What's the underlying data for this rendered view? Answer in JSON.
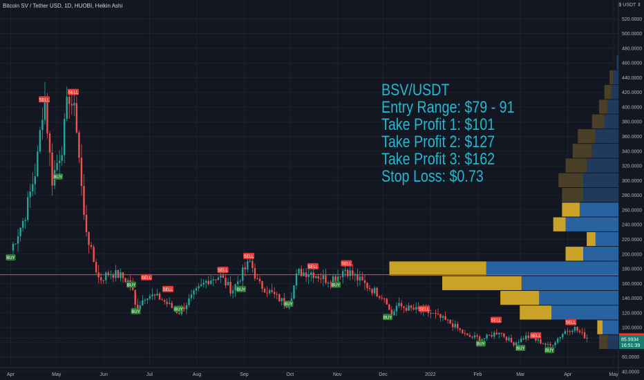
{
  "header": {
    "title": "Bitcoin SV / Tether USD, 1D, HUOBI, Heikin Ashi"
  },
  "price_axis": {
    "unit": "$ USDT ⇕"
  },
  "overlay": {
    "lines": [
      "BSV/USDT",
      "Entry Range: $79 - 91",
      "Take Profit 1: $101",
      "Take Profit 2: $127",
      "Take Profit 3: $162",
      "Stop Loss: $0.73"
    ]
  },
  "colors": {
    "background": "#131722",
    "grid": "#1e222d",
    "up": "#26a69a",
    "down": "#ef5350",
    "text_overlay": "#22b8cf",
    "horizontal_line": "#f23645",
    "profile_up": "#2962a0",
    "profile_down": "#c9a227",
    "buy": "#2e7d32",
    "sell": "#e53935"
  },
  "price_badges": {
    "current": "86.6424",
    "last": "85.9934",
    "countdown": "16:51:39"
  },
  "chart_data": {
    "type": "candlestick",
    "title": "Bitcoin SV / Tether USD, 1D, HUOBI, Heikin Ashi",
    "ylim": [
      40,
      540
    ],
    "y_ticks": [
      "40.0000",
      "60.0000",
      "80.0000",
      "100.0000",
      "120.0000",
      "140.0000",
      "160.0000",
      "180.0000",
      "200.0000",
      "220.0000",
      "240.0000",
      "260.0000",
      "280.0000",
      "300.0000",
      "320.0000",
      "340.0000",
      "360.0000",
      "380.0000",
      "400.0000",
      "420.0000",
      "440.0000",
      "460.0000",
      "480.0000",
      "500.0000",
      "520.0000"
    ],
    "x_ticks": [
      "Apr",
      "May",
      "Jun",
      "Jul",
      "Aug",
      "Sep",
      "Oct",
      "Nov",
      "Dec",
      "2022",
      "Feb",
      "Mar",
      "Apr",
      "May"
    ],
    "close_series": [
      {
        "x": "2021-04-01",
        "y": 205
      },
      {
        "x": "2021-04-10",
        "y": 250
      },
      {
        "x": "2021-04-18",
        "y": 320
      },
      {
        "x": "2021-04-23",
        "y": 420
      },
      {
        "x": "2021-04-28",
        "y": 300
      },
      {
        "x": "2021-05-05",
        "y": 350
      },
      {
        "x": "2021-05-09",
        "y": 420
      },
      {
        "x": "2021-05-14",
        "y": 380
      },
      {
        "x": "2021-05-19",
        "y": 250
      },
      {
        "x": "2021-05-24",
        "y": 200
      },
      {
        "x": "2021-05-29",
        "y": 165
      },
      {
        "x": "2021-06-05",
        "y": 175
      },
      {
        "x": "2021-06-12",
        "y": 170
      },
      {
        "x": "2021-06-19",
        "y": 160
      },
      {
        "x": "2021-06-22",
        "y": 125
      },
      {
        "x": "2021-06-29",
        "y": 145
      },
      {
        "x": "2021-07-08",
        "y": 140
      },
      {
        "x": "2021-07-20",
        "y": 120
      },
      {
        "x": "2021-07-30",
        "y": 145
      },
      {
        "x": "2021-08-08",
        "y": 165
      },
      {
        "x": "2021-08-16",
        "y": 170
      },
      {
        "x": "2021-08-24",
        "y": 150
      },
      {
        "x": "2021-08-31",
        "y": 175
      },
      {
        "x": "2021-09-05",
        "y": 190
      },
      {
        "x": "2021-09-10",
        "y": 160
      },
      {
        "x": "2021-09-20",
        "y": 145
      },
      {
        "x": "2021-09-30",
        "y": 130
      },
      {
        "x": "2021-10-06",
        "y": 175
      },
      {
        "x": "2021-10-15",
        "y": 175
      },
      {
        "x": "2021-10-25",
        "y": 165
      },
      {
        "x": "2021-11-01",
        "y": 170
      },
      {
        "x": "2021-11-06",
        "y": 180
      },
      {
        "x": "2021-11-15",
        "y": 165
      },
      {
        "x": "2021-11-25",
        "y": 150
      },
      {
        "x": "2021-12-03",
        "y": 140
      },
      {
        "x": "2021-12-06",
        "y": 115
      },
      {
        "x": "2021-12-10",
        "y": 130
      },
      {
        "x": "2021-12-20",
        "y": 125
      },
      {
        "x": "2022-01-01",
        "y": 120
      },
      {
        "x": "2022-01-15",
        "y": 105
      },
      {
        "x": "2022-01-25",
        "y": 88
      },
      {
        "x": "2022-02-05",
        "y": 85
      },
      {
        "x": "2022-02-15",
        "y": 95
      },
      {
        "x": "2022-02-24",
        "y": 78
      },
      {
        "x": "2022-03-05",
        "y": 88
      },
      {
        "x": "2022-03-15",
        "y": 80
      },
      {
        "x": "2022-03-20",
        "y": 74
      },
      {
        "x": "2022-03-30",
        "y": 95
      },
      {
        "x": "2022-04-05",
        "y": 100
      },
      {
        "x": "2022-04-12",
        "y": 88
      },
      {
        "x": "2022-04-15",
        "y": 86
      }
    ],
    "horizontal_line": 172,
    "signals": [
      {
        "label": "BUY",
        "date": "2021-04-01",
        "price": 195
      },
      {
        "label": "SELL",
        "date": "2021-04-23",
        "price": 410
      },
      {
        "label": "BUY",
        "date": "2021-05-02",
        "price": 305
      },
      {
        "label": "SELL",
        "date": "2021-05-12",
        "price": 420
      },
      {
        "label": "BUY",
        "date": "2021-06-19",
        "price": 158
      },
      {
        "label": "SELL",
        "date": "2021-06-29",
        "price": 168
      },
      {
        "label": "BUY",
        "date": "2021-06-22",
        "price": 122
      },
      {
        "label": "SELL",
        "date": "2021-07-13",
        "price": 152
      },
      {
        "label": "BUY",
        "date": "2021-07-20",
        "price": 125
      },
      {
        "label": "SELL",
        "date": "2021-08-18",
        "price": 178
      },
      {
        "label": "BUY",
        "date": "2021-08-30",
        "price": 152
      },
      {
        "label": "SELL",
        "date": "2021-09-04",
        "price": 197
      },
      {
        "label": "BUY",
        "date": "2021-09-30",
        "price": 132
      },
      {
        "label": "SELL",
        "date": "2021-10-16",
        "price": 183
      },
      {
        "label": "BUY",
        "date": "2021-10-31",
        "price": 158
      },
      {
        "label": "SELL",
        "date": "2021-11-07",
        "price": 187
      },
      {
        "label": "BUY",
        "date": "2021-12-04",
        "price": 114
      },
      {
        "label": "SELL",
        "date": "2021-12-28",
        "price": 125
      },
      {
        "label": "BUY",
        "date": "2022-02-03",
        "price": 78
      },
      {
        "label": "SELL",
        "date": "2022-02-13",
        "price": 110
      },
      {
        "label": "BUY",
        "date": "2022-03-01",
        "price": 72
      },
      {
        "label": "SELL",
        "date": "2022-03-11",
        "price": 89
      },
      {
        "label": "BUY",
        "date": "2022-03-20",
        "price": 69
      },
      {
        "label": "SELL",
        "date": "2022-04-03",
        "price": 107
      }
    ],
    "volume_profile": [
      {
        "price": 80,
        "up": 0.06,
        "down": 0.05
      },
      {
        "price": 100,
        "up": 0.09,
        "down": 0.03
      },
      {
        "price": 120,
        "up": 0.38,
        "down": 0.18
      },
      {
        "price": 140,
        "up": 0.45,
        "down": 0.22
      },
      {
        "price": 160,
        "up": 0.55,
        "down": 0.45
      },
      {
        "price": 180,
        "up": 0.75,
        "down": 0.55
      },
      {
        "price": 200,
        "up": 0.2,
        "down": 0.1
      },
      {
        "price": 220,
        "up": 0.13,
        "down": 0.05
      },
      {
        "price": 240,
        "up": 0.3,
        "down": 0.07
      },
      {
        "price": 260,
        "up": 0.22,
        "down": 0.1
      },
      {
        "price": 280,
        "up": 0.2,
        "down": 0.12
      },
      {
        "price": 300,
        "up": 0.2,
        "down": 0.14
      },
      {
        "price": 320,
        "up": 0.18,
        "down": 0.12
      },
      {
        "price": 340,
        "up": 0.15,
        "down": 0.11
      },
      {
        "price": 360,
        "up": 0.13,
        "down": 0.1
      },
      {
        "price": 380,
        "up": 0.08,
        "down": 0.07
      },
      {
        "price": 400,
        "up": 0.06,
        "down": 0.05
      },
      {
        "price": 420,
        "up": 0.04,
        "down": 0.04
      },
      {
        "price": 440,
        "up": 0.03,
        "down": 0.02
      },
      {
        "price": 460,
        "up": 0.01,
        "down": 0.0
      }
    ]
  }
}
